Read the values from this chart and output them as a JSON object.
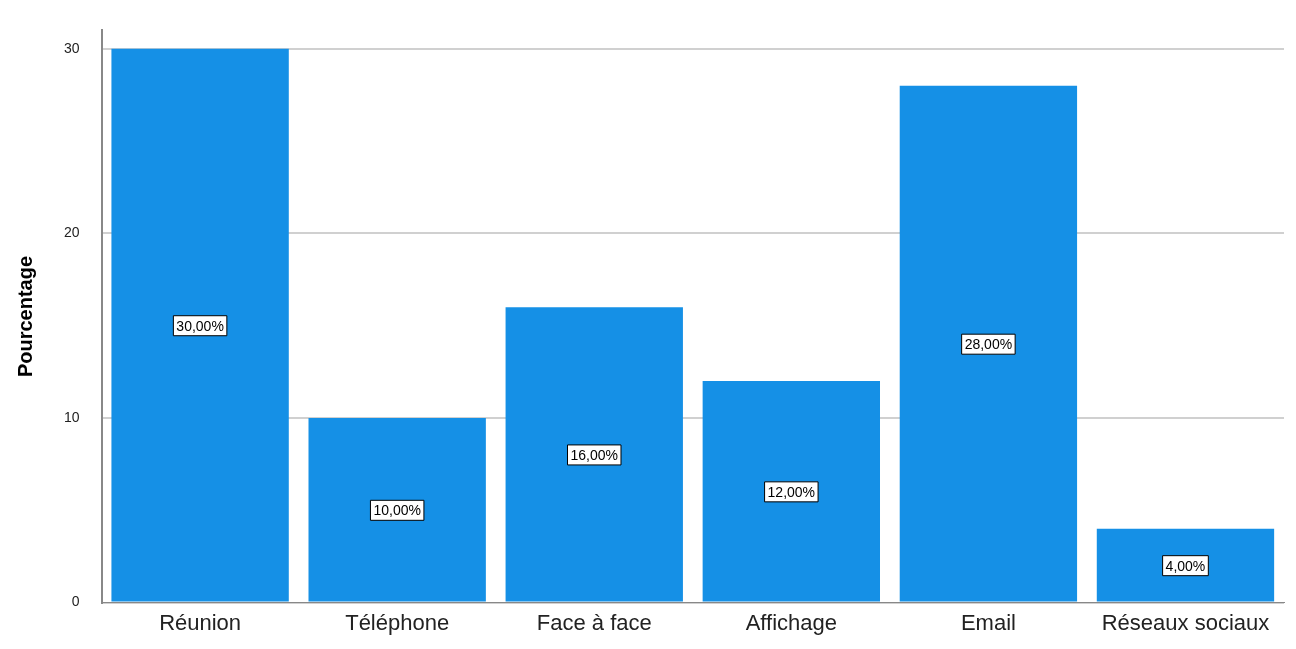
{
  "chart_data": {
    "type": "bar",
    "ylabel": "Pourcentage",
    "categories": [
      "Réunion",
      "Téléphone",
      "Face à face",
      "Affichage",
      "Email",
      "Réseaux sociaux"
    ],
    "values": [
      30,
      10,
      16,
      12,
      28,
      4
    ],
    "value_labels": [
      "30,00%",
      "10,00%",
      "16,00%",
      "12,00%",
      "28,00%",
      "4,00%"
    ],
    "color": "#1590e6",
    "ylim": [
      0,
      31
    ],
    "yticks": [
      0,
      10,
      20,
      30
    ],
    "grid": "y",
    "legend": false
  }
}
